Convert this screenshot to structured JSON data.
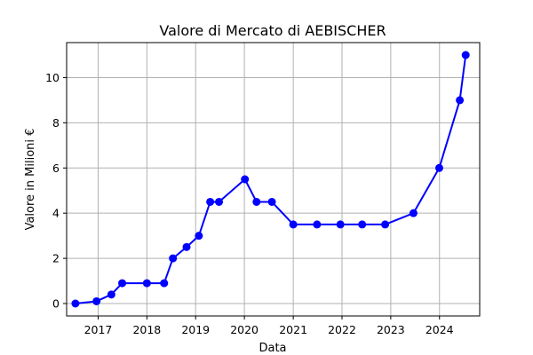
{
  "chart_data": {
    "type": "line",
    "title": "Valore di Mercato di AEBISCHER",
    "xlabel": "Data",
    "ylabel": "Valore in Milioni €",
    "xlim": [
      "2016-05-10",
      "2024-10-28"
    ],
    "ylim": [
      -0.55,
      11.55
    ],
    "grid": true,
    "x_ticks": [
      {
        "date": "2017-01-01",
        "label": "2017"
      },
      {
        "date": "2018-01-01",
        "label": "2018"
      },
      {
        "date": "2019-01-01",
        "label": "2019"
      },
      {
        "date": "2020-01-01",
        "label": "2020"
      },
      {
        "date": "2021-01-01",
        "label": "2021"
      },
      {
        "date": "2022-01-01",
        "label": "2022"
      },
      {
        "date": "2023-01-01",
        "label": "2023"
      },
      {
        "date": "2024-01-01",
        "label": "2024"
      }
    ],
    "y_ticks": [
      0,
      2,
      4,
      6,
      8,
      10
    ],
    "series": [
      {
        "color": "#0000ff",
        "marker": "circle",
        "points": [
          {
            "x": "2016-07-15",
            "y": 0
          },
          {
            "x": "2016-12-20",
            "y": 0.1
          },
          {
            "x": "2017-04-10",
            "y": 0.4
          },
          {
            "x": "2017-06-30",
            "y": 0.9
          },
          {
            "x": "2018-01-01",
            "y": 0.9
          },
          {
            "x": "2018-05-10",
            "y": 0.9
          },
          {
            "x": "2018-07-15",
            "y": 2
          },
          {
            "x": "2018-10-25",
            "y": 2.5
          },
          {
            "x": "2019-01-25",
            "y": 3
          },
          {
            "x": "2019-04-20",
            "y": 4.5
          },
          {
            "x": "2019-06-25",
            "y": 4.5
          },
          {
            "x": "2020-01-05",
            "y": 5.5
          },
          {
            "x": "2020-04-01",
            "y": 4.5
          },
          {
            "x": "2020-07-25",
            "y": 4.5
          },
          {
            "x": "2021-01-01",
            "y": 3.5
          },
          {
            "x": "2021-06-28",
            "y": 3.5
          },
          {
            "x": "2021-12-20",
            "y": 3.5
          },
          {
            "x": "2022-06-01",
            "y": 3.5
          },
          {
            "x": "2022-11-20",
            "y": 3.5
          },
          {
            "x": "2023-06-20",
            "y": 4
          },
          {
            "x": "2023-12-30",
            "y": 6
          },
          {
            "x": "2024-06-01",
            "y": 9
          },
          {
            "x": "2024-07-15",
            "y": 11
          }
        ]
      }
    ]
  }
}
